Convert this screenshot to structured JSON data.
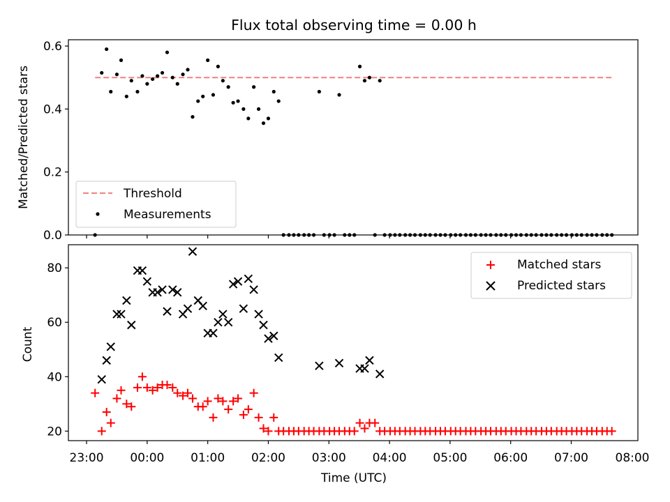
{
  "chart_data": [
    {
      "type": "scatter",
      "title": "Flux total observing time = 0.00 h",
      "xlabel": "",
      "ylabel": "Matched/Predicted stars",
      "x_unit": "hours since 23:00 UTC",
      "xlim": [
        -0.3,
        9.1
      ],
      "ylim": [
        0.0,
        0.62
      ],
      "yticks": [
        0.0,
        0.2,
        0.4,
        0.6
      ],
      "ytick_labels": [
        "0.0",
        "0.2",
        "0.4",
        "0.6"
      ],
      "xticks": [
        0,
        1,
        2,
        3,
        4,
        5,
        6,
        7,
        8
      ],
      "legend_position": "lower-left",
      "series": [
        {
          "name": "Threshold",
          "style": "dashed-line",
          "color": "#f08080",
          "points": [
            [
              0.14,
              0.5
            ],
            [
              8.67,
              0.5
            ]
          ]
        },
        {
          "name": "Measurements",
          "style": "dot",
          "color": "#000000",
          "points": [
            [
              0.14,
              0.0
            ],
            [
              0.25,
              0.515
            ],
            [
              0.33,
              0.59
            ],
            [
              0.4,
              0.455
            ],
            [
              0.5,
              0.51
            ],
            [
              0.57,
              0.555
            ],
            [
              0.66,
              0.44
            ],
            [
              0.74,
              0.49
            ],
            [
              0.84,
              0.455
            ],
            [
              0.92,
              0.505
            ],
            [
              1.0,
              0.48
            ],
            [
              1.09,
              0.495
            ],
            [
              1.17,
              0.505
            ],
            [
              1.25,
              0.515
            ],
            [
              1.33,
              0.58
            ],
            [
              1.42,
              0.5
            ],
            [
              1.5,
              0.48
            ],
            [
              1.59,
              0.51
            ],
            [
              1.67,
              0.525
            ],
            [
              1.75,
              0.375
            ],
            [
              1.84,
              0.425
            ],
            [
              1.92,
              0.44
            ],
            [
              2.0,
              0.555
            ],
            [
              2.09,
              0.445
            ],
            [
              2.17,
              0.535
            ],
            [
              2.25,
              0.49
            ],
            [
              2.34,
              0.47
            ],
            [
              2.42,
              0.42
            ],
            [
              2.5,
              0.425
            ],
            [
              2.59,
              0.4
            ],
            [
              2.67,
              0.37
            ],
            [
              2.76,
              0.47
            ],
            [
              2.84,
              0.4
            ],
            [
              2.92,
              0.355
            ],
            [
              3.0,
              0.37
            ],
            [
              3.09,
              0.455
            ],
            [
              3.17,
              0.425
            ],
            [
              3.25,
              0.0
            ],
            [
              3.34,
              0.0
            ],
            [
              3.42,
              0.0
            ],
            [
              3.5,
              0.0
            ],
            [
              3.59,
              0.0
            ],
            [
              3.67,
              0.0
            ],
            [
              3.75,
              0.0
            ],
            [
              3.84,
              0.455
            ],
            [
              3.92,
              0.0
            ],
            [
              4.01,
              0.0
            ],
            [
              4.09,
              0.0
            ],
            [
              4.17,
              0.445
            ],
            [
              4.26,
              0.0
            ],
            [
              4.34,
              0.0
            ],
            [
              4.42,
              0.0
            ],
            [
              4.51,
              0.535
            ],
            [
              4.59,
              0.49
            ],
            [
              4.67,
              0.5
            ],
            [
              4.76,
              0.0
            ],
            [
              4.84,
              0.49
            ],
            [
              4.92,
              0.0
            ],
            [
              5.01,
              0.0
            ],
            [
              5.09,
              0.0
            ],
            [
              5.17,
              0.0
            ],
            [
              5.26,
              0.0
            ],
            [
              5.34,
              0.0
            ],
            [
              5.42,
              0.0
            ],
            [
              5.51,
              0.0
            ],
            [
              5.59,
              0.0
            ],
            [
              5.67,
              0.0
            ],
            [
              5.76,
              0.0
            ],
            [
              5.84,
              0.0
            ],
            [
              5.92,
              0.0
            ],
            [
              6.01,
              0.0
            ],
            [
              6.09,
              0.0
            ],
            [
              6.17,
              0.0
            ],
            [
              6.26,
              0.0
            ],
            [
              6.34,
              0.0
            ],
            [
              6.42,
              0.0
            ],
            [
              6.51,
              0.0
            ],
            [
              6.59,
              0.0
            ],
            [
              6.67,
              0.0
            ],
            [
              6.76,
              0.0
            ],
            [
              6.84,
              0.0
            ],
            [
              6.92,
              0.0
            ],
            [
              7.01,
              0.0
            ],
            [
              7.09,
              0.0
            ],
            [
              7.17,
              0.0
            ],
            [
              7.26,
              0.0
            ],
            [
              7.34,
              0.0
            ],
            [
              7.42,
              0.0
            ],
            [
              7.51,
              0.0
            ],
            [
              7.59,
              0.0
            ],
            [
              7.67,
              0.0
            ],
            [
              7.76,
              0.0
            ],
            [
              7.84,
              0.0
            ],
            [
              7.92,
              0.0
            ],
            [
              8.01,
              0.0
            ],
            [
              8.09,
              0.0
            ],
            [
              8.17,
              0.0
            ],
            [
              8.26,
              0.0
            ],
            [
              8.34,
              0.0
            ],
            [
              8.42,
              0.0
            ],
            [
              8.51,
              0.0
            ],
            [
              8.59,
              0.0
            ],
            [
              8.67,
              0.0
            ]
          ]
        }
      ]
    },
    {
      "type": "scatter",
      "title": "",
      "xlabel": "Time (UTC)",
      "ylabel": "Count",
      "x_unit": "hours since 23:00 UTC",
      "xlim": [
        -0.3,
        9.1
      ],
      "ylim": [
        16.5,
        88.5
      ],
      "yticks": [
        20,
        40,
        60,
        80
      ],
      "ytick_labels": [
        "20",
        "40",
        "60",
        "80"
      ],
      "xticks": [
        0,
        1,
        2,
        3,
        4,
        5,
        6,
        7,
        8
      ],
      "xtick_labels": [
        "23:00",
        "00:00",
        "01:00",
        "02:00",
        "03:00",
        "04:00",
        "05:00",
        "06:00",
        "07:00",
        "08:00"
      ],
      "legend_position": "upper-right",
      "series": [
        {
          "name": "Matched stars",
          "style": "plus",
          "color": "#ff0000",
          "points": [
            [
              0.14,
              34
            ],
            [
              0.25,
              20
            ],
            [
              0.33,
              27
            ],
            [
              0.4,
              23
            ],
            [
              0.5,
              32
            ],
            [
              0.57,
              35
            ],
            [
              0.66,
              30
            ],
            [
              0.74,
              29
            ],
            [
              0.84,
              36
            ],
            [
              0.92,
              40
            ],
            [
              1.0,
              36
            ],
            [
              1.09,
              35
            ],
            [
              1.17,
              36
            ],
            [
              1.25,
              37
            ],
            [
              1.33,
              37
            ],
            [
              1.42,
              36
            ],
            [
              1.5,
              34
            ],
            [
              1.59,
              33
            ],
            [
              1.67,
              34
            ],
            [
              1.75,
              32
            ],
            [
              1.84,
              29
            ],
            [
              1.92,
              29
            ],
            [
              2.0,
              31
            ],
            [
              2.09,
              25
            ],
            [
              2.17,
              32
            ],
            [
              2.25,
              31
            ],
            [
              2.34,
              28
            ],
            [
              2.42,
              31
            ],
            [
              2.5,
              32
            ],
            [
              2.59,
              26
            ],
            [
              2.67,
              28
            ],
            [
              2.76,
              34
            ],
            [
              2.84,
              25
            ],
            [
              2.92,
              21
            ],
            [
              3.0,
              20
            ],
            [
              3.09,
              25
            ],
            [
              3.17,
              20
            ],
            [
              3.25,
              20
            ],
            [
              3.34,
              20
            ],
            [
              3.42,
              20
            ],
            [
              3.5,
              20
            ],
            [
              3.59,
              20
            ],
            [
              3.67,
              20
            ],
            [
              3.75,
              20
            ],
            [
              3.84,
              20
            ],
            [
              3.92,
              20
            ],
            [
              4.01,
              20
            ],
            [
              4.09,
              20
            ],
            [
              4.17,
              20
            ],
            [
              4.26,
              20
            ],
            [
              4.34,
              20
            ],
            [
              4.42,
              20
            ],
            [
              4.51,
              23
            ],
            [
              4.59,
              21
            ],
            [
              4.67,
              23
            ],
            [
              4.76,
              23
            ],
            [
              4.84,
              20
            ],
            [
              4.92,
              20
            ],
            [
              5.01,
              20
            ],
            [
              5.09,
              20
            ],
            [
              5.17,
              20
            ],
            [
              5.26,
              20
            ],
            [
              5.34,
              20
            ],
            [
              5.42,
              20
            ],
            [
              5.51,
              20
            ],
            [
              5.59,
              20
            ],
            [
              5.67,
              20
            ],
            [
              5.76,
              20
            ],
            [
              5.84,
              20
            ],
            [
              5.92,
              20
            ],
            [
              6.01,
              20
            ],
            [
              6.09,
              20
            ],
            [
              6.17,
              20
            ],
            [
              6.26,
              20
            ],
            [
              6.34,
              20
            ],
            [
              6.42,
              20
            ],
            [
              6.51,
              20
            ],
            [
              6.59,
              20
            ],
            [
              6.67,
              20
            ],
            [
              6.76,
              20
            ],
            [
              6.84,
              20
            ],
            [
              6.92,
              20
            ],
            [
              7.01,
              20
            ],
            [
              7.09,
              20
            ],
            [
              7.17,
              20
            ],
            [
              7.26,
              20
            ],
            [
              7.34,
              20
            ],
            [
              7.42,
              20
            ],
            [
              7.51,
              20
            ],
            [
              7.59,
              20
            ],
            [
              7.67,
              20
            ],
            [
              7.76,
              20
            ],
            [
              7.84,
              20
            ],
            [
              7.92,
              20
            ],
            [
              8.01,
              20
            ],
            [
              8.09,
              20
            ],
            [
              8.17,
              20
            ],
            [
              8.26,
              20
            ],
            [
              8.34,
              20
            ],
            [
              8.42,
              20
            ],
            [
              8.51,
              20
            ],
            [
              8.59,
              20
            ],
            [
              8.67,
              20
            ]
          ]
        },
        {
          "name": "Predicted stars",
          "style": "x",
          "color": "#000000",
          "points": [
            [
              0.25,
              39
            ],
            [
              0.33,
              46
            ],
            [
              0.4,
              51
            ],
            [
              0.5,
              63
            ],
            [
              0.57,
              63
            ],
            [
              0.66,
              68
            ],
            [
              0.74,
              59
            ],
            [
              0.84,
              79
            ],
            [
              0.92,
              79
            ],
            [
              1.0,
              75
            ],
            [
              1.09,
              71
            ],
            [
              1.17,
              71
            ],
            [
              1.25,
              72
            ],
            [
              1.33,
              64
            ],
            [
              1.42,
              72
            ],
            [
              1.5,
              71
            ],
            [
              1.59,
              63
            ],
            [
              1.67,
              65
            ],
            [
              1.75,
              86
            ],
            [
              1.84,
              68
            ],
            [
              1.92,
              66
            ],
            [
              2.0,
              56
            ],
            [
              2.09,
              56
            ],
            [
              2.17,
              60
            ],
            [
              2.25,
              63
            ],
            [
              2.34,
              60
            ],
            [
              2.42,
              74
            ],
            [
              2.5,
              75
            ],
            [
              2.59,
              65
            ],
            [
              2.67,
              76
            ],
            [
              2.76,
              72
            ],
            [
              2.84,
              63
            ],
            [
              2.92,
              59
            ],
            [
              3.0,
              54
            ],
            [
              3.09,
              55
            ],
            [
              3.17,
              47
            ],
            [
              3.84,
              44
            ],
            [
              4.17,
              45
            ],
            [
              4.51,
              43
            ],
            [
              4.59,
              43
            ],
            [
              4.67,
              46
            ],
            [
              4.84,
              41
            ]
          ]
        }
      ]
    }
  ]
}
